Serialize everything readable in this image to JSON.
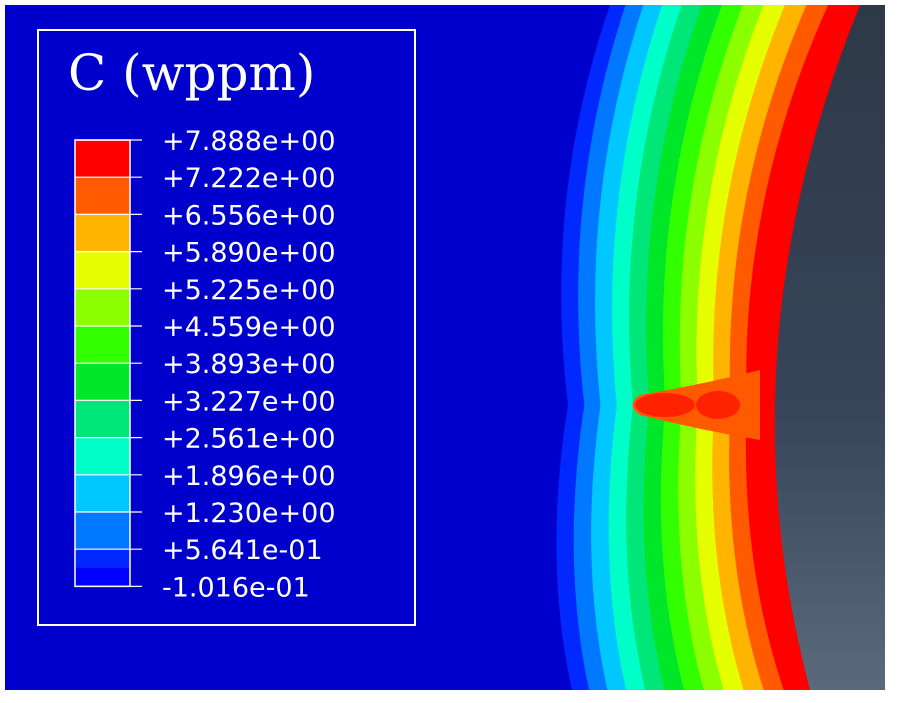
{
  "legend": {
    "title": "C (wppm)",
    "levels": [
      {
        "label": "+7.888e+00",
        "value": 7.888,
        "color": "#ff0000"
      },
      {
        "label": "+7.222e+00",
        "value": 7.222,
        "color": "#ff5a00"
      },
      {
        "label": "+6.556e+00",
        "value": 6.556,
        "color": "#ffb400"
      },
      {
        "label": "+5.890e+00",
        "value": 5.89,
        "color": "#e6ff00"
      },
      {
        "label": "+5.225e+00",
        "value": 5.225,
        "color": "#8cff00"
      },
      {
        "label": "+4.559e+00",
        "value": 4.559,
        "color": "#32ff00"
      },
      {
        "label": "+3.893e+00",
        "value": 3.893,
        "color": "#00e628"
      },
      {
        "label": "+3.227e+00",
        "value": 3.227,
        "color": "#00e678"
      },
      {
        "label": "+2.561e+00",
        "value": 2.561,
        "color": "#00ffc8"
      },
      {
        "label": "+1.896e+00",
        "value": 1.896,
        "color": "#00c8ff"
      },
      {
        "label": "+1.230e+00",
        "value": 1.23,
        "color": "#0078ff"
      },
      {
        "label": "+5.641e-01",
        "value": 0.5641,
        "color": "#0028ff"
      },
      {
        "label": "-1.016e-01",
        "value": -0.1016,
        "color": null
      }
    ],
    "bottom_color": "#0000ff"
  },
  "colors": {
    "background": "#0000cc",
    "void": "#34404e",
    "legend_border": "#ffffff"
  }
}
